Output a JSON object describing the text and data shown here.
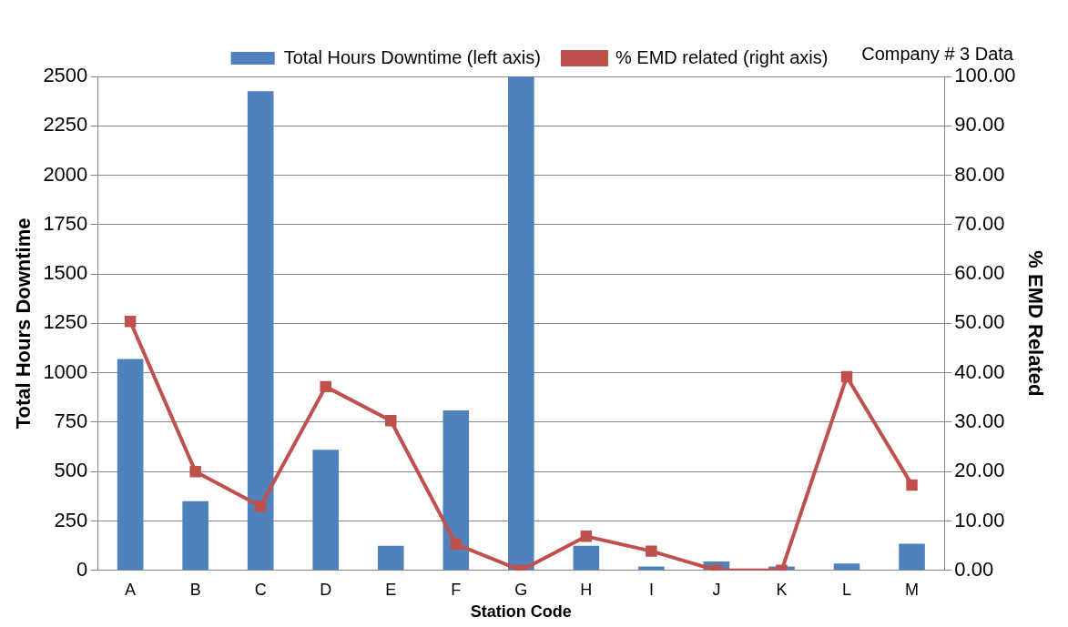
{
  "chart_data": {
    "type": "bar",
    "xlabel": "Station Code",
    "ylabel": "Total Hours Downtime",
    "y2label": "% EMD Related",
    "annotations": [
      "Company # 3 Data"
    ],
    "categories": [
      "A",
      "B",
      "C",
      "D",
      "E",
      "F",
      "G",
      "H",
      "I",
      "J",
      "K",
      "L",
      "M"
    ],
    "series": [
      {
        "name": "Total Hours Downtime (left axis)",
        "color": "#4f81bd",
        "values": [
          1070,
          350,
          2425,
          610,
          125,
          810,
          2500,
          125,
          20,
          45,
          20,
          35,
          135
        ]
      },
      {
        "name": "% EMD related (right axis)",
        "type": "line",
        "axis": "y2",
        "color": "#c0504d",
        "marker": "square",
        "values": [
          50.4,
          20,
          13,
          37.2,
          30.3,
          5.3,
          0,
          6.9,
          3.9,
          0,
          0,
          39.2,
          17.3
        ]
      }
    ],
    "ylim": [
      0,
      2500
    ],
    "yticks": [
      0,
      250,
      500,
      750,
      1000,
      1250,
      1500,
      1750,
      2000,
      2250,
      2500
    ],
    "y2lim": [
      0,
      100
    ],
    "y2ticks": [
      {
        "value": 0,
        "label": "0.00"
      },
      {
        "value": 10,
        "label": "10.00"
      },
      {
        "value": 20,
        "label": "20.00"
      },
      {
        "value": 30,
        "label": "30.00"
      },
      {
        "value": 40,
        "label": "40.00"
      },
      {
        "value": 50,
        "label": "50.00"
      },
      {
        "value": 60,
        "label": "60.00"
      },
      {
        "value": 70,
        "label": "70.00"
      },
      {
        "value": 80,
        "label": "80.00"
      },
      {
        "value": 90,
        "label": "90.00"
      },
      {
        "value": 100,
        "label": "100.00"
      }
    ],
    "grid": "y",
    "legend": "top"
  }
}
